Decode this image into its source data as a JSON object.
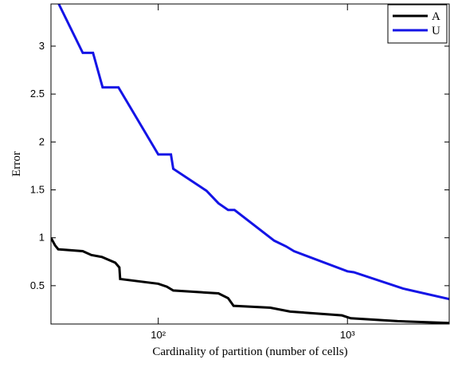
{
  "chart_data": {
    "type": "line",
    "xlabel": "Cardinality of partition (number of cells)",
    "ylabel": "Error",
    "xscale": "log",
    "xlim": [
      27.1,
      3450
    ],
    "ylim": [
      0.1,
      3.44
    ],
    "xticks": [
      {
        "value": 100,
        "label": "10²"
      },
      {
        "value": 1000,
        "label": "10³"
      }
    ],
    "yticks": [
      0.5,
      1,
      1.5,
      2,
      2.5,
      3
    ],
    "legend": "upper right",
    "series": [
      {
        "name": "A",
        "color": "#000000",
        "x": [
          27.1,
          28.5,
          29.6,
          39.9,
          44.3,
          50.3,
          59.3,
          62.3,
          62.9,
          100,
          111,
          120,
          208,
          234,
          250,
          391,
          498,
          935,
          1040,
          1841,
          3450
        ],
        "values": [
          1.0,
          0.92,
          0.88,
          0.86,
          0.82,
          0.8,
          0.74,
          0.69,
          0.57,
          0.52,
          0.49,
          0.45,
          0.42,
          0.37,
          0.29,
          0.27,
          0.23,
          0.19,
          0.16,
          0.13,
          0.11
        ]
      },
      {
        "name": "U",
        "color": "#1414e6",
        "x": [
          29.8,
          39.9,
          45.2,
          50.8,
          61.6,
          100,
          116.7,
          120,
          180,
          208,
          234,
          253,
          410,
          474,
          522,
          1000,
          1081,
          1967,
          3450
        ],
        "values": [
          3.44,
          2.93,
          2.93,
          2.57,
          2.57,
          1.87,
          1.87,
          1.72,
          1.49,
          1.36,
          1.29,
          1.29,
          0.97,
          0.91,
          0.86,
          0.65,
          0.64,
          0.47,
          0.36
        ]
      }
    ]
  }
}
